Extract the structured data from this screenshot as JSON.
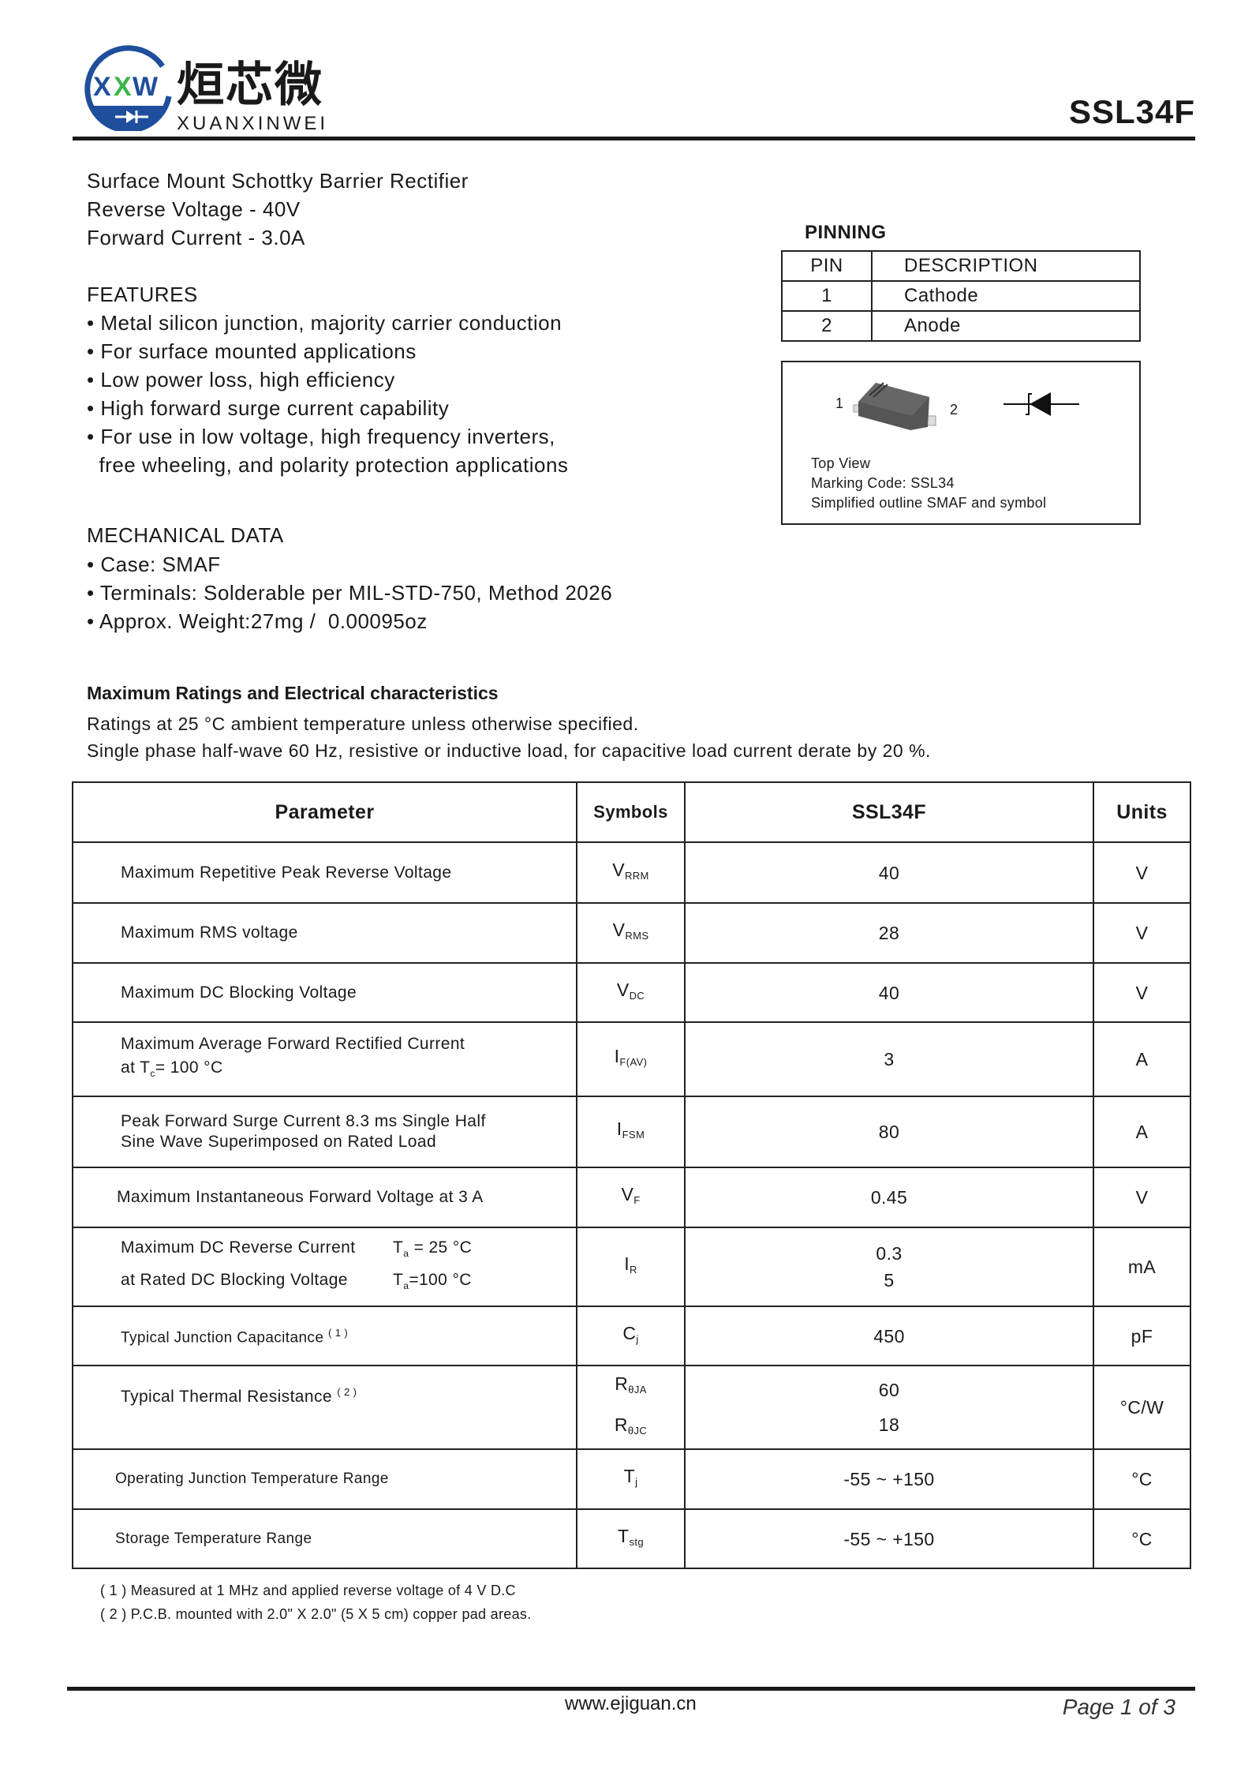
{
  "header": {
    "logo": {
      "mark_text": "XXW",
      "chinese_name": "烜芯微",
      "latin_name": "XUANXINWEI",
      "colors": {
        "ring": "#1f4e9c",
        "accent": "#3bb54a"
      }
    },
    "part_number": "SSL34F"
  },
  "summary": [
    "Surface Mount Schottky Barrier Rectifier",
    "Reverse Voltage - 40V",
    "Forward Current - 3.0A"
  ],
  "features": {
    "title": "FEATURES",
    "items": [
      "• Metal silicon junction, majority carrier conduction",
      "• For surface mounted applications",
      "• Low power loss, high efficiency",
      "• High forward surge current capability",
      "• For use in low voltage, high frequency inverters,",
      "  free wheeling, and polarity protection applications"
    ]
  },
  "mechanical": {
    "title": "MECHANICAL DATA",
    "items": [
      "• Case: SMAF",
      "• Terminals: Solderable per MIL-STD-750, Method 2026",
      "• Approx. Weight:27mg /  0.00095oz"
    ]
  },
  "pinning": {
    "title": "PINNING",
    "headers": [
      "PIN",
      "DESCRIPTION"
    ],
    "rows": [
      [
        "1",
        "Cathode"
      ],
      [
        "2",
        "Anode"
      ]
    ],
    "diagram": {
      "pin1": "1",
      "pin2": "2",
      "lines": [
        "Top View",
        "Marking Code: SSL34",
        "Simplified outline SMAF and symbol"
      ]
    }
  },
  "ratings": {
    "title": "Maximum Ratings and Electrical characteristics",
    "notes": [
      "Ratings at 25 °C ambient temperature unless otherwise specified.",
      "Single phase half-wave 60 Hz, resistive or inductive load, for capacitive load current derate by 20 %."
    ],
    "headers": [
      "Parameter",
      "Symbols",
      "SSL34F",
      "Units"
    ],
    "rows": [
      {
        "param": "Maximum Repetitive Peak Reverse Voltage",
        "sym": "V",
        "sub": "RRM",
        "value": "40",
        "unit": "V"
      },
      {
        "param": "Maximum RMS voltage",
        "sym": "V",
        "sub": "RMS",
        "value": "28",
        "unit": "V"
      },
      {
        "param": "Maximum DC Blocking Voltage",
        "sym": "V",
        "sub": "DC",
        "value": "40",
        "unit": "V"
      },
      {
        "param": "Maximum Average Forward Rectified Current",
        "param2": "at T",
        "param2_sub": "c",
        "param2_rest": "= 100 °C",
        "sym": "I",
        "sub": "F(AV)",
        "value": "3",
        "unit": "A"
      },
      {
        "param": "Peak Forward Surge Current 8.3 ms Single Half",
        "param2": "Sine Wave Superimposed on Rated Load",
        "sym": "I",
        "sub": "FSM",
        "value": "80",
        "unit": "A"
      },
      {
        "param": "Maximum Instantaneous Forward Voltage at 3 A",
        "sym": "V",
        "sub": "F",
        "value": "0.45",
        "unit": "V"
      },
      {
        "param": "Maximum DC Reverse Current",
        "param2": "at Rated DC Blocking Voltage",
        "cond1": "= 25 °C",
        "cond2": "=100 °C",
        "cond_sym": "T",
        "cond_sub": "a",
        "sym": "I",
        "sub": "R",
        "value": "0.3",
        "value2": "5",
        "unit": "mA"
      },
      {
        "param": "Typical Junction Capacitance",
        "note": "( 1 )",
        "sym": "C",
        "sub": "j",
        "value": "450",
        "unit": "pF"
      },
      {
        "param": "Typical Thermal Resistance",
        "note": "( 2 )",
        "sym": "R",
        "sub": "θJA",
        "sym2": "R",
        "sub2": "θJC",
        "value": "60",
        "value2": "18",
        "unit": "°C/W"
      },
      {
        "param": "Operating Junction Temperature Range",
        "sym": "T",
        "sub": "j",
        "value": "-55 ~ +150",
        "unit": "°C"
      },
      {
        "param": "Storage Temperature Range",
        "sym": "T",
        "sub": "stg",
        "value": "-55 ~ +150",
        "unit": "°C"
      }
    ]
  },
  "footnotes": [
    "( 1 ) Measured at 1 MHz and applied reverse voltage of 4 V D.C",
    "( 2 ) P.C.B. mounted with 2.0\" X 2.0\" (5 X 5 cm) copper pad areas."
  ],
  "footer": {
    "website": "www.ejiguan.cn",
    "page": "Page 1 of 3"
  }
}
